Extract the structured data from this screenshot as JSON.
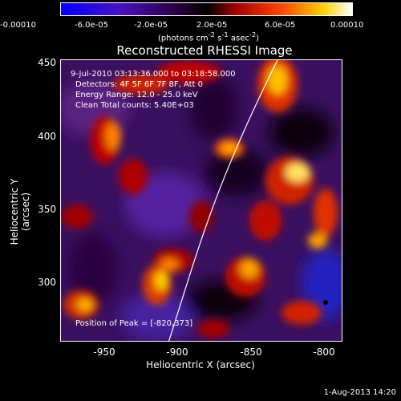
{
  "colorbar": {
    "ticks": [
      "-0.00010",
      "-6.0e-05",
      "-2.0e-05",
      "2.0e-05",
      "6.0e-05",
      "0.00010"
    ],
    "units_main": "(photons cm",
    "units_sup1": "-2",
    "units_mid": " s",
    "units_sup2": "-1",
    "units_end": " asec",
    "units_sup3": "-2",
    "units_close": ")"
  },
  "plot": {
    "title": "Reconstructed RHESSI Image",
    "annotations": {
      "time_range": "9-Jul-2010 03:13:36.000 to 03:18:58.000",
      "detectors": "Detectors: 4F 5F 6F 7F 8F, Att 0",
      "energy": "Energy Range: 12.0 - 25.0 keV",
      "clean": "Clean      Total counts: 5.40E+03",
      "peak": "Position of Peak = [-820,373]"
    },
    "x_axis": {
      "label": "Heliocentric X (arcsec)",
      "ticks": [
        "-950",
        "-900",
        "-850",
        "-800"
      ],
      "range": [
        -978,
        -787
      ]
    },
    "y_axis": {
      "label": "Heliocentric Y (arcsec)",
      "ticks": [
        "450",
        "400",
        "350",
        "300"
      ],
      "range": [
        258,
        452
      ]
    }
  },
  "footer": {
    "date": "1-Aug-2013 14:20"
  }
}
